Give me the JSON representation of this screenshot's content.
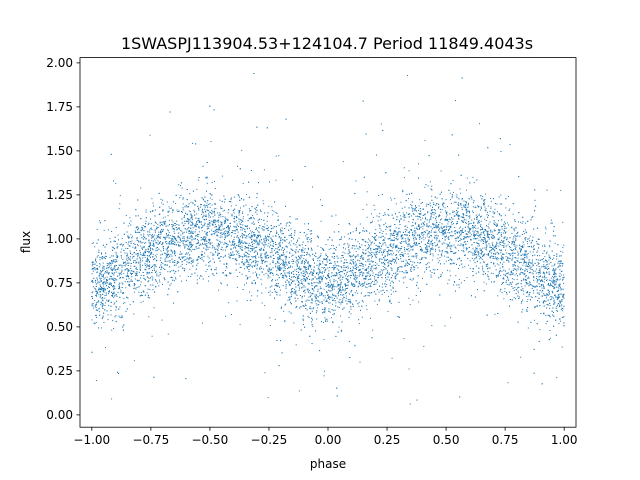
{
  "chart_data": {
    "type": "scatter",
    "title": "1SWASPJ113904.53+124104.7 Period 11849.4043s",
    "xlabel": "phase",
    "ylabel": "flux",
    "xlim": [
      -1.05,
      1.05
    ],
    "ylim": [
      -0.07,
      2.03
    ],
    "xticks": [
      -1.0,
      -0.75,
      -0.5,
      -0.25,
      0.0,
      0.25,
      0.5,
      0.75,
      1.0
    ],
    "xtick_labels": [
      "−1.00",
      "−0.75",
      "−0.50",
      "−0.25",
      "0.00",
      "0.25",
      "0.50",
      "0.75",
      "1.00"
    ],
    "yticks": [
      0.0,
      0.25,
      0.5,
      0.75,
      1.0,
      1.25,
      1.5,
      1.75,
      2.0
    ],
    "ytick_labels": [
      "0.00",
      "0.25",
      "0.50",
      "0.75",
      "1.00",
      "1.25",
      "1.50",
      "1.75",
      "2.00"
    ],
    "grid": false,
    "marker_color": "#1f77b4",
    "series": [
      {
        "x": [
          -1.0,
          -0.9,
          -0.8,
          -0.7,
          -0.6,
          -0.5,
          -0.4,
          -0.3,
          -0.2,
          -0.1,
          0.0,
          0.1,
          0.2,
          0.3,
          0.4,
          0.5,
          0.6,
          0.7,
          0.8,
          0.9,
          1.0
        ],
        "y": [
          0.72,
          0.8,
          0.89,
          0.96,
          1.02,
          1.04,
          1.02,
          0.96,
          0.88,
          0.8,
          0.72,
          0.8,
          0.88,
          0.96,
          1.02,
          1.04,
          1.02,
          0.96,
          0.89,
          0.8,
          0.72
        ]
      }
    ]
  }
}
